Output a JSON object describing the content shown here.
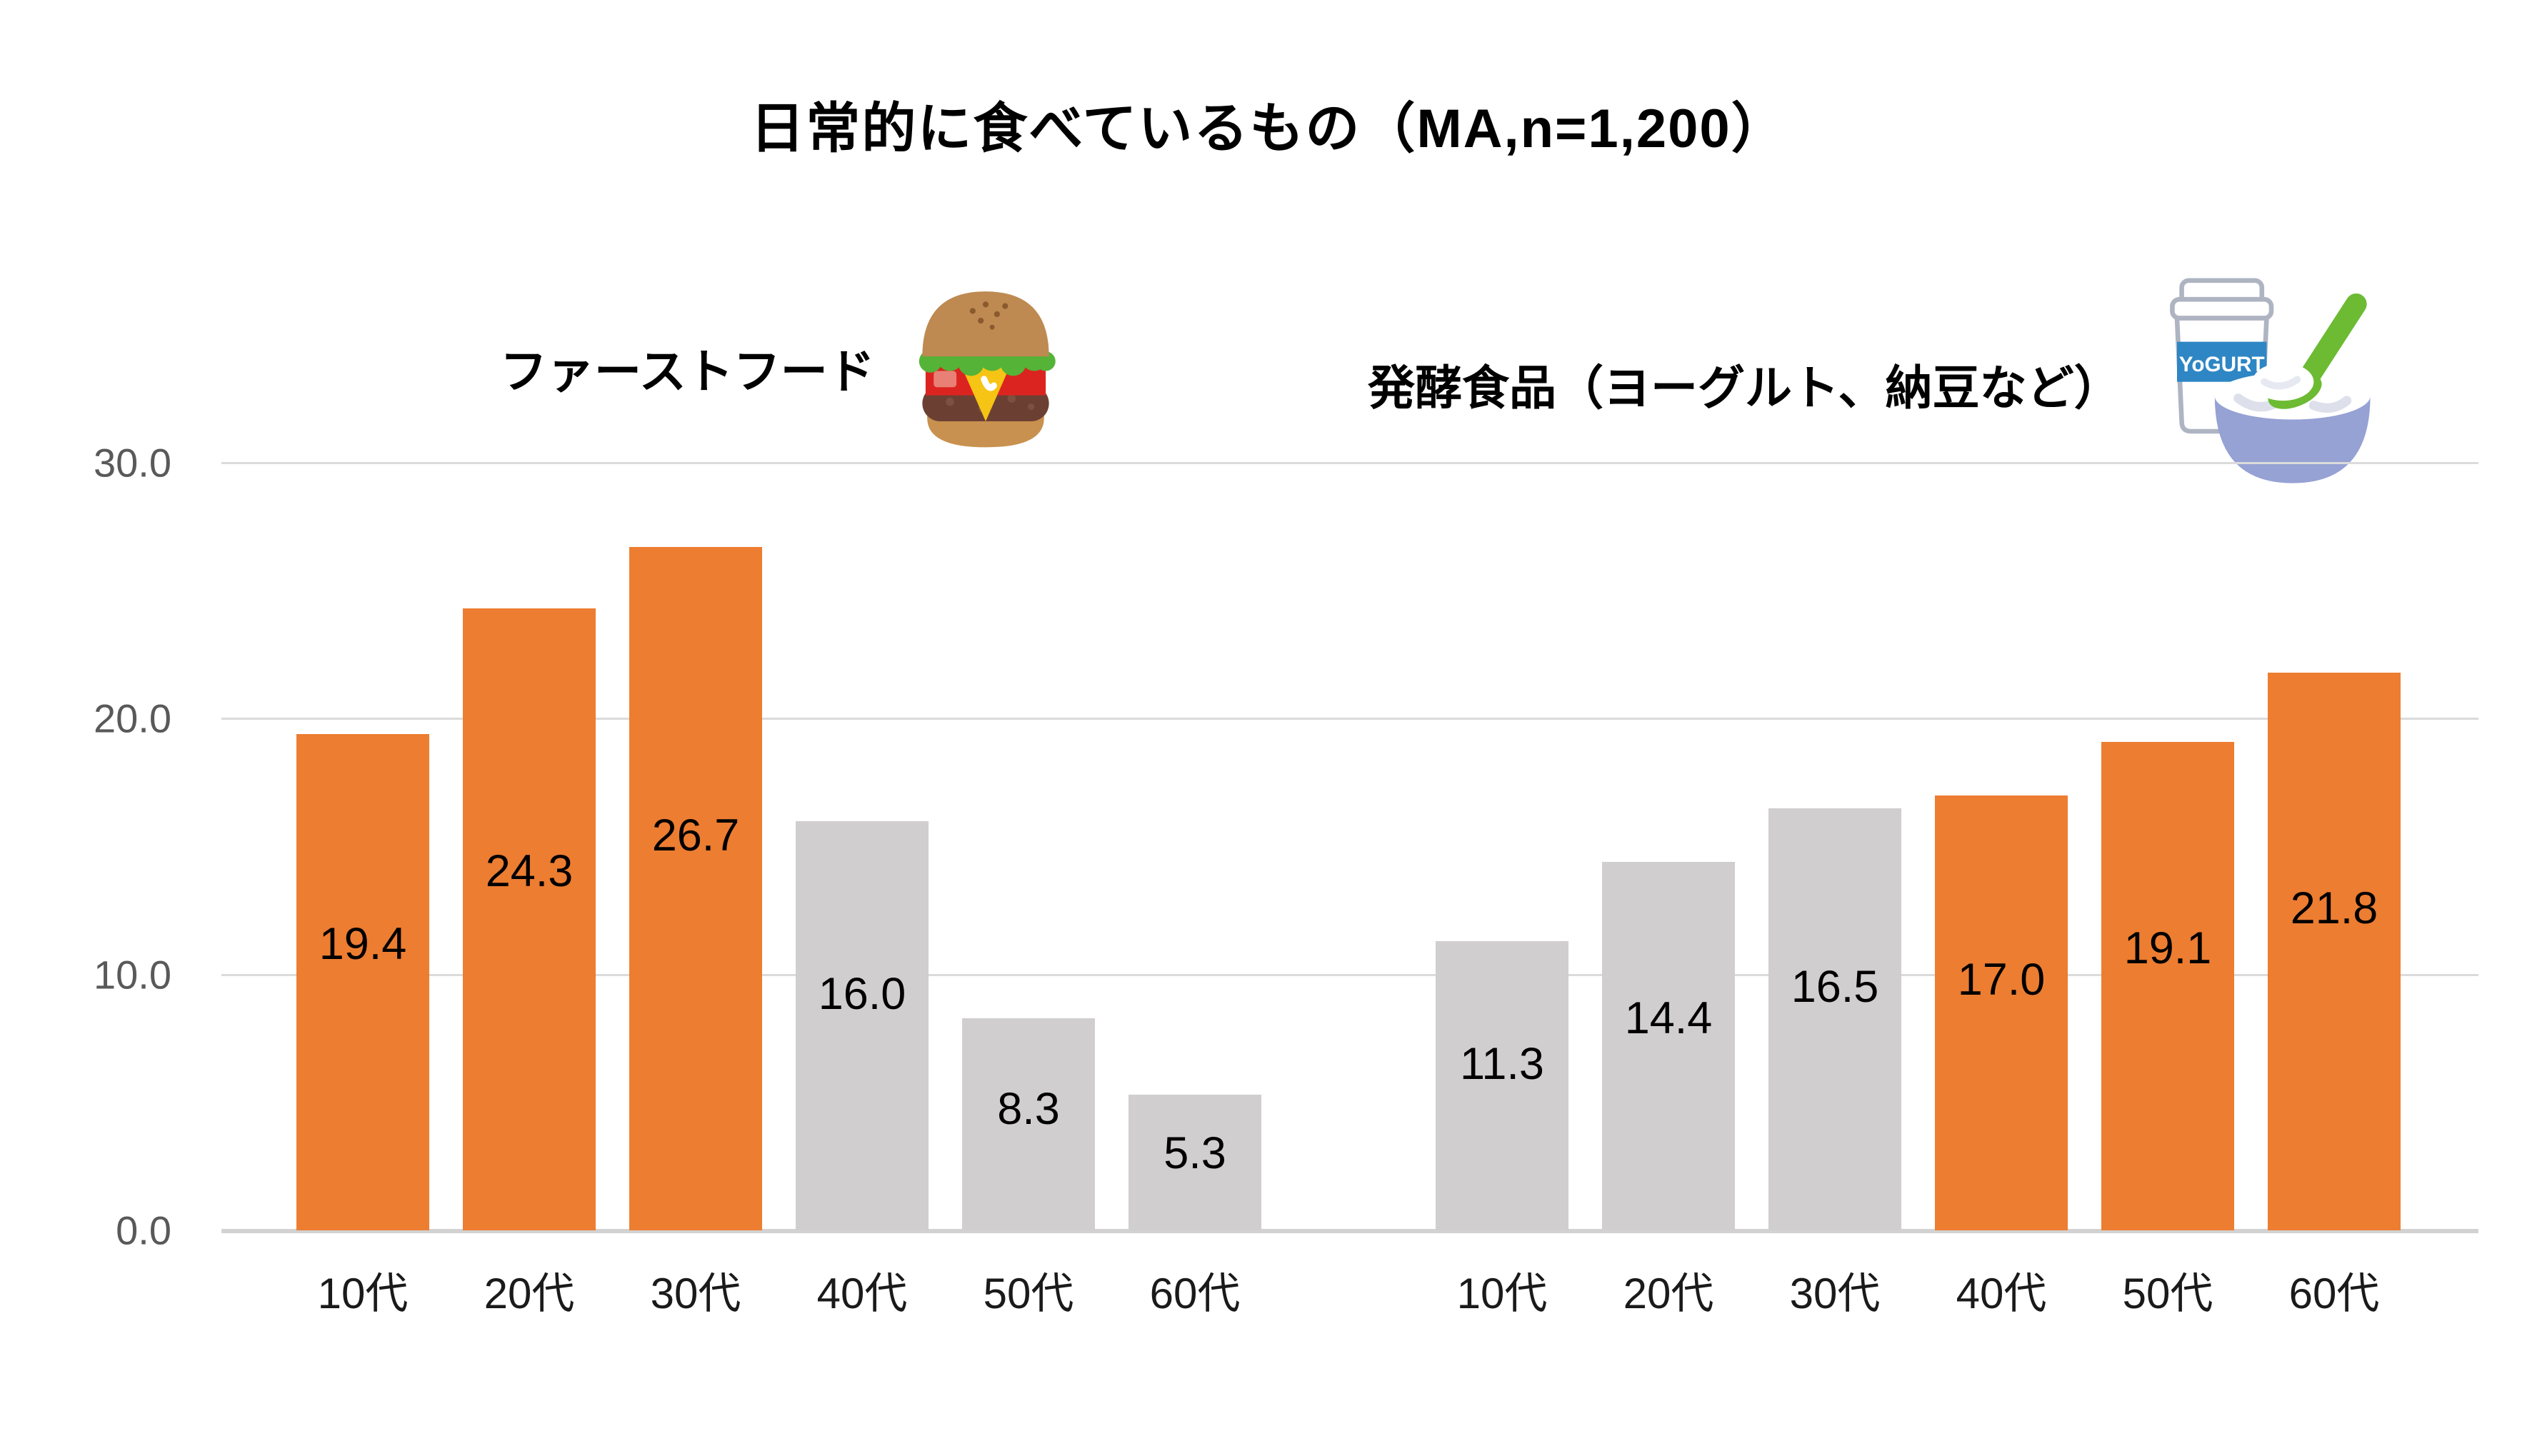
{
  "title": "日常的に食べているもの（MA,n=1,200）",
  "colors": {
    "highlight": "#ED7D31",
    "muted": "#D0CECE",
    "grid": "#DBDBDB",
    "axis_tick_text": "#595959",
    "label_text": "#000000"
  },
  "y_axis": {
    "ticks": [
      "30.0",
      "20.0",
      "10.0",
      "0.0"
    ],
    "max": 30,
    "min": 0
  },
  "icons": {
    "hamburger": "hamburger-icon",
    "yogurt": "yogurt-icon",
    "yogurt_carton_label": "YoGURT"
  },
  "chart_data": {
    "type": "bar",
    "title": "日常的に食べているもの（MA,n=1,200）",
    "ylim": [
      0,
      30
    ],
    "grid": true,
    "legend": "none",
    "groups": [
      {
        "label": "ファーストフード",
        "icon": "hamburger-icon",
        "categories": [
          "10代",
          "20代",
          "30代",
          "40代",
          "50代",
          "60代"
        ],
        "values": [
          19.4,
          24.3,
          26.7,
          16.0,
          8.3,
          5.3
        ],
        "highlighted": [
          true,
          true,
          true,
          false,
          false,
          false
        ]
      },
      {
        "label": "発酵食品（ヨーグルト、納豆など）",
        "icon": "yogurt-icon",
        "categories": [
          "10代",
          "20代",
          "30代",
          "40代",
          "50代",
          "60代"
        ],
        "values": [
          11.3,
          14.4,
          16.5,
          17.0,
          19.1,
          21.8
        ],
        "highlighted": [
          false,
          false,
          false,
          true,
          true,
          true
        ]
      }
    ]
  }
}
